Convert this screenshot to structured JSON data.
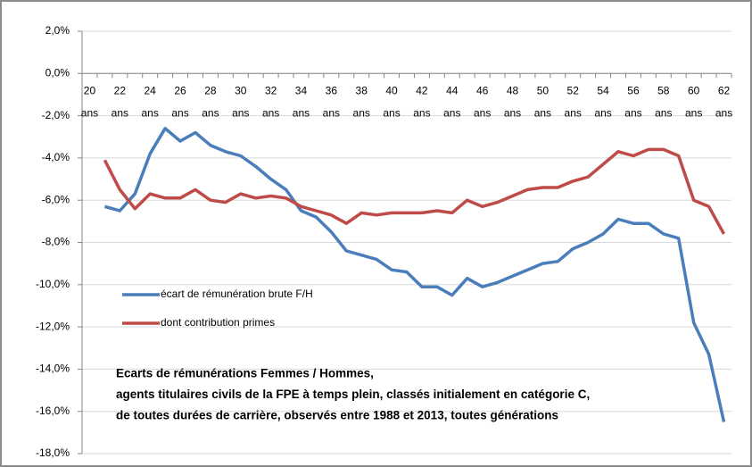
{
  "chart_data": {
    "type": "line",
    "categories": [
      "20 ans",
      null,
      "22 ans",
      null,
      "24 ans",
      null,
      "26 ans",
      null,
      "28 ans",
      null,
      "30 ans",
      null,
      "32 ans",
      null,
      "34 ans",
      null,
      "36 ans",
      null,
      "38 ans",
      null,
      "40 ans",
      null,
      "42 ans",
      null,
      "44 ans",
      null,
      "46 ans",
      null,
      "48 ans",
      null,
      "50 ans",
      null,
      "52 ans",
      null,
      "54 ans",
      null,
      "56 ans",
      null,
      "58 ans",
      null,
      "60 ans",
      null,
      "62 ans"
    ],
    "series": [
      {
        "name": "écart de rémunération brute F/H",
        "color": "#4a7ebb",
        "values": [
          null,
          -6.3,
          -6.5,
          -5.7,
          -3.8,
          -2.6,
          -3.2,
          -2.8,
          -3.4,
          -3.7,
          -3.9,
          -4.4,
          -5.0,
          -5.5,
          -6.5,
          -6.8,
          -7.5,
          -8.4,
          -8.6,
          -8.8,
          -9.3,
          -9.4,
          -10.1,
          -10.1,
          -10.5,
          -9.7,
          -10.1,
          -9.9,
          -9.6,
          -9.3,
          -9.0,
          -8.9,
          -8.3,
          -8.0,
          -7.6,
          -6.9,
          -7.1,
          -7.1,
          -7.6,
          -7.8,
          -11.8,
          -13.3,
          -16.5
        ]
      },
      {
        "name": "dont contribution primes",
        "color": "#be4b48",
        "values": [
          null,
          -4.1,
          -5.5,
          -6.4,
          -5.7,
          -5.9,
          -5.9,
          -5.5,
          -6.0,
          -6.1,
          -5.7,
          -5.9,
          -5.8,
          -5.9,
          -6.3,
          -6.5,
          -6.7,
          -7.1,
          -6.6,
          -6.7,
          -6.6,
          -6.6,
          -6.6,
          -6.5,
          -6.6,
          -6.0,
          -6.3,
          -6.1,
          -5.8,
          -5.5,
          -5.4,
          -5.4,
          -5.1,
          -4.9,
          -4.3,
          -3.7,
          -3.9,
          -3.6,
          -3.6,
          -3.9,
          -6.0,
          -6.3,
          -7.6
        ]
      }
    ],
    "ylim": [
      -18,
      2
    ],
    "yticks": [
      {
        "value": 2,
        "label": "2,0%"
      },
      {
        "value": 0,
        "label": "0,0%"
      },
      {
        "value": -2,
        "label": "-2,0%"
      },
      {
        "value": -4,
        "label": "-4,0%"
      },
      {
        "value": -6,
        "label": "-6,0%"
      },
      {
        "value": -8,
        "label": "-8,0%"
      },
      {
        "value": -10,
        "label": "-10,0%"
      },
      {
        "value": -12,
        "label": "-12,0%"
      },
      {
        "value": -14,
        "label": "-14,0%"
      },
      {
        "value": -16,
        "label": "-16,0%"
      },
      {
        "value": -18,
        "label": "-18,0%"
      }
    ],
    "grid": true,
    "legend": "left",
    "annotations": [
      "Ecarts de rémunérations Femmes / Hommes,",
      "agents titulaires civils de la FPE à temps plein, classés initialement en catégorie C,",
      "de toutes durées de carrière, observés entre 1988 et 2013,  toutes générations"
    ]
  }
}
